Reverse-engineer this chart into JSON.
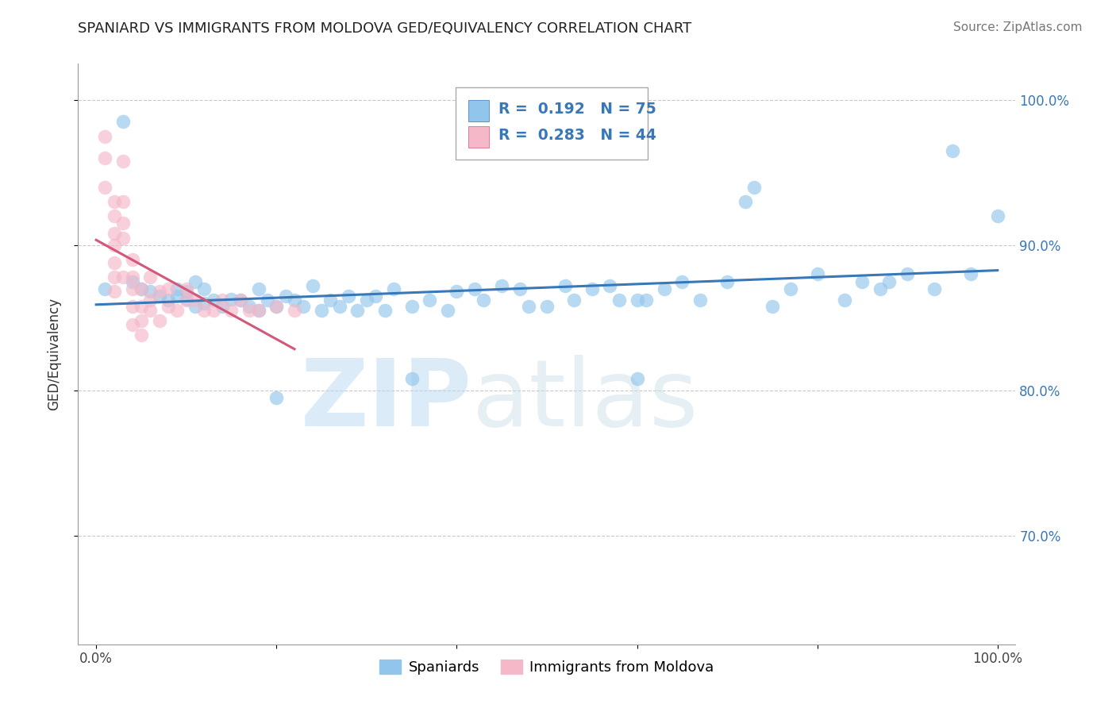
{
  "title": "SPANIARD VS IMMIGRANTS FROM MOLDOVA GED/EQUIVALENCY CORRELATION CHART",
  "source": "Source: ZipAtlas.com",
  "ylabel": "GED/Equivalency",
  "watermark_zip": "ZIP",
  "watermark_atlas": "atlas",
  "legend_label_1": "Spaniards",
  "legend_label_2": "Immigrants from Moldova",
  "R1": 0.192,
  "N1": 75,
  "R2": 0.283,
  "N2": 44,
  "color_blue": "#92c5eb",
  "color_pink": "#f4b8c8",
  "color_blue_line": "#3878b8",
  "color_pink_line": "#d45878",
  "color_text_blue": "#3878b8",
  "xlim": [
    -0.02,
    1.02
  ],
  "ylim": [
    0.625,
    1.025
  ],
  "y_ticks": [
    0.7,
    0.8,
    0.9,
    1.0
  ],
  "y_tick_labels": [
    "70.0%",
    "80.0%",
    "90.0%",
    "100.0%"
  ],
  "blue_x": [
    0.01,
    0.03,
    0.04,
    0.05,
    0.06,
    0.07,
    0.08,
    0.09,
    0.09,
    0.1,
    0.1,
    0.11,
    0.11,
    0.12,
    0.12,
    0.13,
    0.14,
    0.15,
    0.16,
    0.17,
    0.18,
    0.18,
    0.19,
    0.2,
    0.21,
    0.22,
    0.23,
    0.24,
    0.25,
    0.26,
    0.27,
    0.28,
    0.29,
    0.3,
    0.31,
    0.32,
    0.33,
    0.35,
    0.37,
    0.39,
    0.4,
    0.42,
    0.43,
    0.45,
    0.47,
    0.5,
    0.52,
    0.53,
    0.55,
    0.57,
    0.58,
    0.6,
    0.61,
    0.63,
    0.65,
    0.67,
    0.7,
    0.72,
    0.75,
    0.77,
    0.8,
    0.83,
    0.85,
    0.87,
    0.88,
    0.9,
    0.93,
    0.95,
    0.97,
    1.0,
    0.2,
    0.35,
    0.48,
    0.6,
    0.73
  ],
  "blue_y": [
    0.87,
    0.985,
    0.875,
    0.87,
    0.868,
    0.865,
    0.862,
    0.87,
    0.865,
    0.868,
    0.863,
    0.875,
    0.858,
    0.87,
    0.86,
    0.862,
    0.858,
    0.863,
    0.862,
    0.858,
    0.87,
    0.855,
    0.862,
    0.858,
    0.865,
    0.862,
    0.858,
    0.872,
    0.855,
    0.862,
    0.858,
    0.865,
    0.855,
    0.862,
    0.865,
    0.855,
    0.87,
    0.858,
    0.862,
    0.855,
    0.868,
    0.87,
    0.862,
    0.872,
    0.87,
    0.858,
    0.872,
    0.862,
    0.87,
    0.872,
    0.862,
    0.862,
    0.862,
    0.87,
    0.875,
    0.862,
    0.875,
    0.93,
    0.858,
    0.87,
    0.88,
    0.862,
    0.875,
    0.87,
    0.875,
    0.88,
    0.87,
    0.965,
    0.88,
    0.92,
    0.795,
    0.808,
    0.858,
    0.808,
    0.94
  ],
  "pink_x": [
    0.01,
    0.01,
    0.01,
    0.02,
    0.02,
    0.02,
    0.02,
    0.02,
    0.02,
    0.02,
    0.03,
    0.03,
    0.03,
    0.03,
    0.04,
    0.04,
    0.04,
    0.04,
    0.04,
    0.05,
    0.05,
    0.05,
    0.06,
    0.06,
    0.07,
    0.07,
    0.08,
    0.09,
    0.1,
    0.11,
    0.12,
    0.13,
    0.14,
    0.15,
    0.16,
    0.17,
    0.18,
    0.2,
    0.22,
    0.1,
    0.08,
    0.05,
    0.06,
    0.03
  ],
  "pink_y": [
    0.975,
    0.96,
    0.94,
    0.93,
    0.92,
    0.908,
    0.9,
    0.888,
    0.878,
    0.868,
    0.93,
    0.915,
    0.905,
    0.878,
    0.89,
    0.878,
    0.87,
    0.858,
    0.845,
    0.858,
    0.848,
    0.838,
    0.878,
    0.855,
    0.868,
    0.848,
    0.858,
    0.855,
    0.862,
    0.862,
    0.855,
    0.855,
    0.862,
    0.855,
    0.862,
    0.855,
    0.855,
    0.858,
    0.855,
    0.87,
    0.87,
    0.87,
    0.862,
    0.958
  ]
}
